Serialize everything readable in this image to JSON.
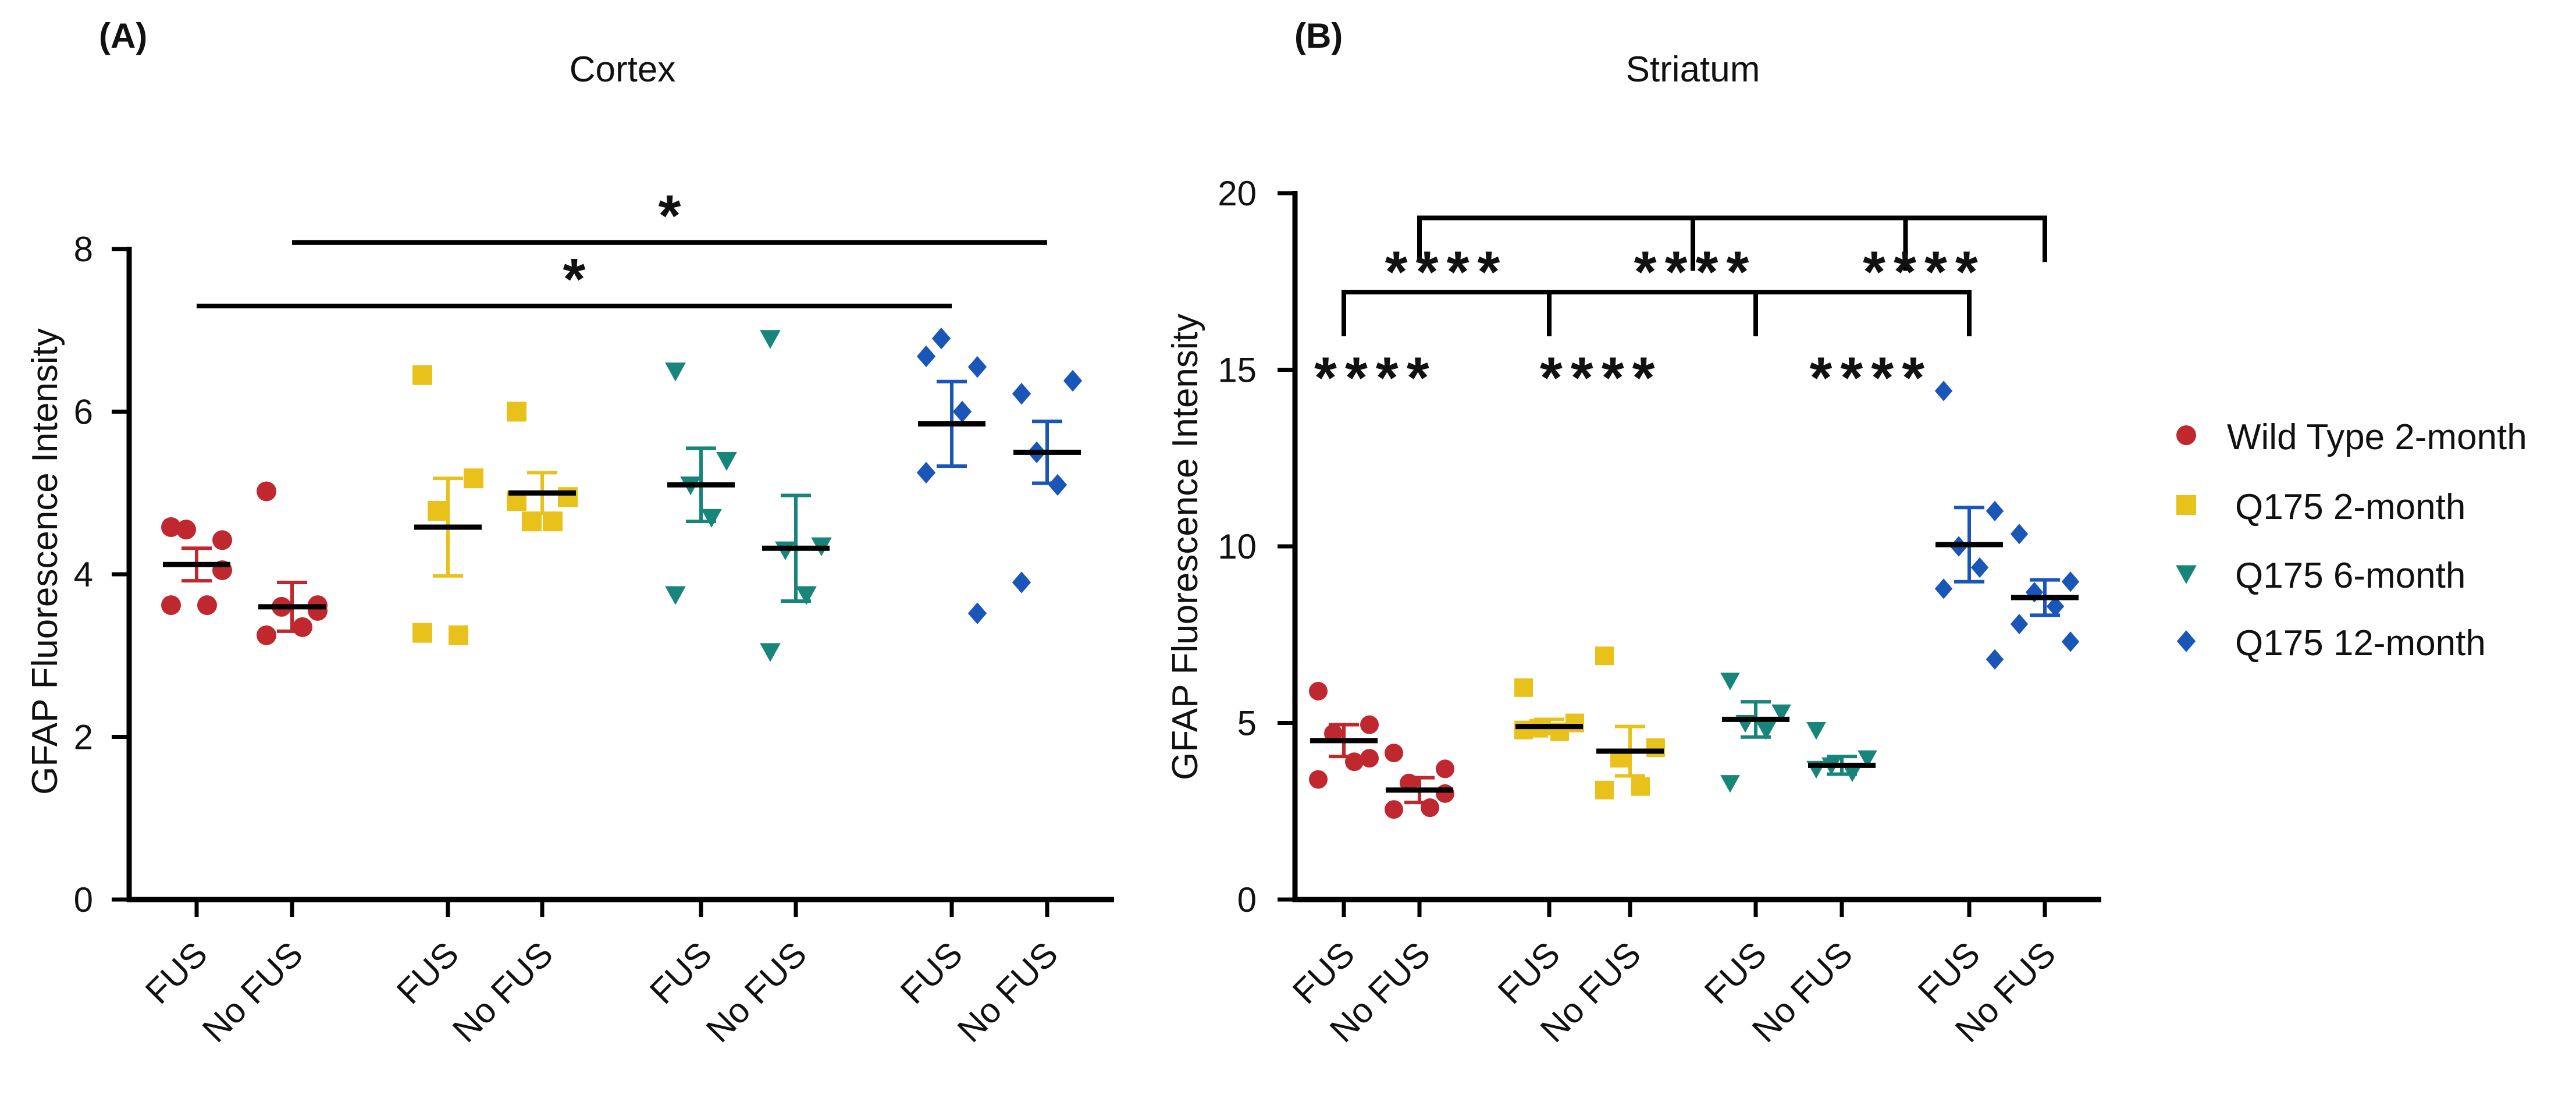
{
  "colors": {
    "wt2": "#c0282f",
    "q2": "#e8c21a",
    "q6": "#17857a",
    "q12": "#1a55b8",
    "axis": "#000000"
  },
  "legend": [
    {
      "series": "wt2",
      "label": "Wild Type 2-month",
      "marker": "circle"
    },
    {
      "series": "q2",
      "label": "Q175 2-month",
      "marker": "square"
    },
    {
      "series": "q6",
      "label": "Q175 6-month",
      "marker": "triangle-down"
    },
    {
      "series": "q12",
      "label": "Q175 12-month",
      "marker": "diamond"
    }
  ],
  "chart_data": [
    {
      "type": "scatter",
      "panel": "(A)",
      "title": "Cortex",
      "ylabel": "GFAP Fluorescence Intensity",
      "ylim": [
        0,
        8
      ],
      "yticks": [
        0,
        2,
        4,
        6,
        8
      ],
      "groups": [
        {
          "label": "FUS",
          "series": "wt2",
          "mean": 4.12,
          "sem": 0.2,
          "points": [
            4.58,
            4.42,
            4.55,
            3.62,
            3.62,
            4.05
          ]
        },
        {
          "label": "No FUS",
          "series": "wt2",
          "mean": 3.6,
          "sem": 0.3,
          "points": [
            5.02,
            3.55,
            3.6,
            3.35,
            3.25,
            3.62
          ]
        },
        {
          "label": "FUS",
          "series": "q2",
          "mean": 4.58,
          "sem": 0.6,
          "points": [
            6.45,
            5.18,
            4.78,
            3.25,
            3.28
          ]
        },
        {
          "label": "No FUS",
          "series": "q2",
          "mean": 5.0,
          "sem": 0.25,
          "points": [
            6.0,
            4.95,
            4.65,
            4.65,
            4.9
          ]
        },
        {
          "label": "FUS",
          "series": "q6",
          "mean": 5.1,
          "sem": 0.45,
          "points": [
            6.5,
            5.4,
            5.1,
            4.7,
            3.75
          ]
        },
        {
          "label": "No FUS",
          "series": "q6",
          "mean": 4.32,
          "sem": 0.65,
          "points": [
            6.9,
            4.35,
            4.3,
            3.75,
            3.05
          ]
        },
        {
          "label": "FUS",
          "series": "q12",
          "mean": 5.85,
          "sem": 0.52,
          "points": [
            6.68,
            6.55,
            6.9,
            6.0,
            5.25,
            3.52
          ]
        },
        {
          "label": "No FUS",
          "series": "q12",
          "mean": 5.5,
          "sem": 0.38,
          "points": [
            6.22,
            6.38,
            5.5,
            5.1,
            3.9
          ]
        }
      ],
      "significance": [
        {
          "from_group": 1,
          "to_group": 7,
          "label": "*",
          "y": 8.08
        },
        {
          "from_group": 0,
          "to_group": 6,
          "label": "*",
          "y": 7.3
        }
      ]
    },
    {
      "type": "scatter",
      "panel": "(B)",
      "title": "Striatum",
      "ylabel": "GFAP Fluorescence Intensity",
      "ylim": [
        0,
        20
      ],
      "yticks": [
        0,
        5,
        10,
        15,
        20
      ],
      "groups": [
        {
          "label": "FUS",
          "series": "wt2",
          "mean": 4.5,
          "sem": 0.45,
          "points": [
            5.9,
            4.95,
            4.7,
            3.9,
            3.4,
            4.0
          ]
        },
        {
          "label": "No FUS",
          "series": "wt2",
          "mean": 3.1,
          "sem": 0.35,
          "points": [
            4.15,
            3.7,
            3.3,
            2.6,
            2.55,
            3.0
          ]
        },
        {
          "label": "FUS",
          "series": "q2",
          "mean": 4.9,
          "sem": 0.2,
          "points": [
            6.0,
            5.0,
            4.85,
            4.75,
            4.8
          ]
        },
        {
          "label": "No FUS",
          "series": "q2",
          "mean": 4.2,
          "sem": 0.7,
          "points": [
            6.9,
            4.3,
            4.0,
            3.2,
            3.1
          ]
        },
        {
          "label": "FUS",
          "series": "q6",
          "mean": 5.1,
          "sem": 0.5,
          "points": [
            6.2,
            5.3,
            5.0,
            4.8,
            3.3
          ]
        },
        {
          "label": "No FUS",
          "series": "q6",
          "mean": 3.8,
          "sem": 0.25,
          "points": [
            4.8,
            4.0,
            3.8,
            3.6,
            3.7
          ]
        },
        {
          "label": "FUS",
          "series": "q12",
          "mean": 10.05,
          "sem": 1.05,
          "points": [
            14.4,
            11.0,
            10.0,
            9.4,
            8.8,
            6.8
          ]
        },
        {
          "label": "No FUS",
          "series": "q12",
          "mean": 8.55,
          "sem": 0.5,
          "points": [
            10.35,
            9.0,
            8.7,
            8.3,
            7.8,
            7.3
          ]
        }
      ],
      "brackets": [
        {
          "y": 19.3,
          "drop": [
            1,
            3,
            5,
            7
          ],
          "junction": [
            1,
            7
          ],
          "stub": [
            3,
            5
          ],
          "stub_to": 17.8
        },
        {
          "y": 17.2,
          "drop": [
            0,
            2,
            4,
            6
          ],
          "junction": [
            0,
            6
          ]
        }
      ],
      "stars": [
        {
          "label": "****",
          "x_between": [
            0,
            2
          ],
          "y": 17.8
        },
        {
          "label": "****",
          "x_between": [
            2,
            5
          ],
          "y": 17.8
        },
        {
          "label": "****",
          "x_between": [
            5,
            6.5
          ],
          "y": 17.8
        },
        {
          "label": "****",
          "x_between": [
            -0.5,
            1.2
          ],
          "y": 14.8
        },
        {
          "label": "****",
          "x_between": [
            1.6,
            3.6
          ],
          "y": 14.8
        },
        {
          "label": "****",
          "x_between": [
            4.2,
            6.0
          ],
          "y": 14.8
        }
      ]
    }
  ]
}
